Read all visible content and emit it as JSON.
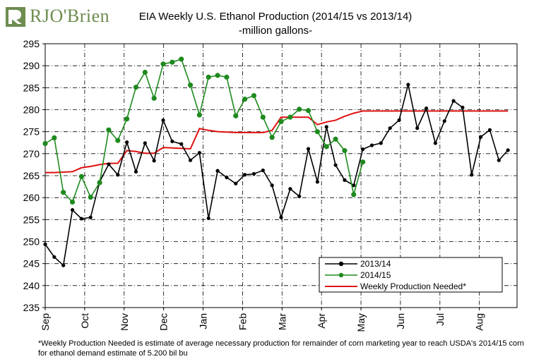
{
  "logo": {
    "text": "RJO'Brien"
  },
  "chart_data": {
    "type": "line",
    "title": "EIA Weekly U.S. Ethanol Production (2014/15 vs 2013/14)",
    "subtitle": "-million  gallons-",
    "xlabel": "",
    "ylabel": "",
    "ylim": [
      235,
      295
    ],
    "yticks": [
      235,
      240,
      245,
      250,
      255,
      260,
      265,
      270,
      275,
      280,
      285,
      290,
      295
    ],
    "xlim": [
      0,
      52
    ],
    "x_ticks": [
      {
        "label": "Sep",
        "x": 0
      },
      {
        "label": "Oct",
        "x": 4.35
      },
      {
        "label": "Nov",
        "x": 8.7
      },
      {
        "label": "Dec",
        "x": 13.05
      },
      {
        "label": "Jan",
        "x": 17.4
      },
      {
        "label": "Feb",
        "x": 21.75
      },
      {
        "label": "Mar",
        "x": 26.1
      },
      {
        "label": "Apr",
        "x": 30.45
      },
      {
        "label": "May",
        "x": 34.8
      },
      {
        "label": "Jun",
        "x": 39.15
      },
      {
        "label": "Jul",
        "x": 43.5
      },
      {
        "label": "Aug",
        "x": 47.85
      }
    ],
    "grid": true,
    "legend_position": "bottom-right",
    "series": [
      {
        "name": "2013/14",
        "color": "#000000",
        "marker": "circle",
        "values": [
          249.4,
          246.5,
          244.6,
          257.2,
          255.2,
          255.5,
          263.6,
          267.6,
          265.2,
          272.6,
          265.9,
          272.4,
          268.4,
          277.6,
          272.8,
          272.2,
          268.5,
          270.2,
          255.3,
          266.1,
          264.6,
          263.2,
          265.2,
          265.4,
          266.2,
          262.8,
          255.5,
          262.0,
          260.3,
          271.1,
          263.6,
          276.1,
          267.4,
          264.0,
          262.8,
          271.0,
          271.9,
          272.4,
          275.8,
          277.6,
          285.7,
          275.8,
          280.3,
          272.4,
          277.4,
          282.0,
          280.5,
          265.2,
          273.8,
          275.4,
          268.5,
          270.8
        ]
      },
      {
        "name": "2014/15",
        "color": "#1e8a1e",
        "marker": "circle",
        "values": [
          272.3,
          273.6,
          261.2,
          259.0,
          264.8,
          260.1,
          263.4,
          275.4,
          273.0,
          277.9,
          285.1,
          288.5,
          282.6,
          290.4,
          290.8,
          291.5,
          285.6,
          278.8,
          287.4,
          287.8,
          287.4,
          278.6,
          282.4,
          283.2,
          278.3,
          273.7,
          277.3,
          278.3,
          280.1,
          279.8,
          275.0,
          271.6,
          273.3,
          270.7,
          260.7,
          268.1
        ]
      },
      {
        "name": "Weekly Production Needed*",
        "color": "#e01010",
        "marker": "none",
        "values": [
          265.7,
          265.7,
          265.8,
          265.9,
          266.8,
          267.1,
          267.5,
          267.8,
          267.8,
          270.7,
          270.5,
          270.1,
          270.1,
          271.4,
          271.3,
          271.2,
          271.1,
          275.7,
          275.3,
          275.0,
          274.9,
          274.8,
          274.8,
          274.8,
          274.8,
          275.3,
          278.3,
          278.3,
          278.3,
          278.3,
          276.6,
          277.2,
          277.6,
          278.5,
          279.2,
          279.7,
          279.7,
          279.7,
          279.7,
          279.7,
          279.7,
          279.7,
          279.7,
          279.7,
          279.7,
          279.7,
          279.7,
          279.7,
          279.7,
          279.7,
          279.7,
          279.7
        ]
      }
    ],
    "footnote": "*Weekly Production Needed is estimate of average necessary production for remainder of corn marketing year to reach USDA's  2014/15 corn for ethanol demand estimate of 5.200 bil bu"
  }
}
